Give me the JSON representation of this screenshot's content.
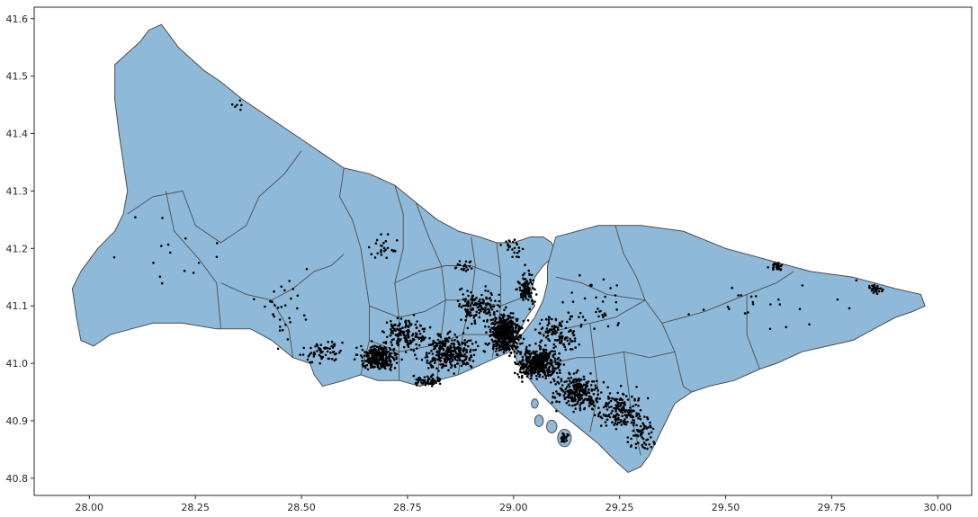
{
  "chart_data": {
    "type": "scatter",
    "title": "",
    "xlabel": "",
    "ylabel": "",
    "xlim": [
      27.87,
      30.08
    ],
    "ylim": [
      40.77,
      41.62
    ],
    "x_ticks": [
      "28.00",
      "28.25",
      "28.50",
      "28.75",
      "29.00",
      "29.25",
      "29.50",
      "29.75",
      "30.00"
    ],
    "y_ticks": [
      "40.8",
      "40.9",
      "41.0",
      "41.1",
      "41.2",
      "41.3",
      "41.4",
      "41.5",
      "41.6"
    ],
    "grid": false,
    "legend": "none",
    "colors": {
      "land": "#8fb9d9",
      "border": "#4d4d4d",
      "points": "#000000",
      "axes": "#262626"
    },
    "outline": [
      [
        28.12,
        41.56
      ],
      [
        28.14,
        41.58
      ],
      [
        28.17,
        41.59
      ],
      [
        28.19,
        41.57
      ],
      [
        28.21,
        41.55
      ],
      [
        28.24,
        41.53
      ],
      [
        28.27,
        41.51
      ],
      [
        28.31,
        41.49
      ],
      [
        28.36,
        41.46
      ],
      [
        28.42,
        41.43
      ],
      [
        28.48,
        41.4
      ],
      [
        28.54,
        41.37
      ],
      [
        28.6,
        41.34
      ],
      [
        28.66,
        41.33
      ],
      [
        28.72,
        41.31
      ],
      [
        28.77,
        41.28
      ],
      [
        28.82,
        41.25
      ],
      [
        28.87,
        41.23
      ],
      [
        28.92,
        41.22
      ],
      [
        28.96,
        41.21
      ],
      [
        29.0,
        41.21
      ],
      [
        29.04,
        41.22
      ],
      [
        29.07,
        41.22
      ],
      [
        29.09,
        41.21
      ],
      [
        29.1,
        41.19
      ],
      [
        29.07,
        41.17
      ],
      [
        29.05,
        41.15
      ],
      [
        29.04,
        41.12
      ],
      [
        29.05,
        41.1
      ],
      [
        29.03,
        41.08
      ],
      [
        29.01,
        41.05
      ],
      [
        28.99,
        41.02
      ],
      [
        28.96,
        41.01
      ],
      [
        28.93,
        41.0
      ],
      [
        28.9,
        40.99
      ],
      [
        28.87,
        40.98
      ],
      [
        28.82,
        40.97
      ],
      [
        28.78,
        40.96
      ],
      [
        28.73,
        40.97
      ],
      [
        28.68,
        40.97
      ],
      [
        28.64,
        40.98
      ],
      [
        28.6,
        40.97
      ],
      [
        28.55,
        40.96
      ],
      [
        28.53,
        40.98
      ],
      [
        28.52,
        41.0
      ],
      [
        28.48,
        41.01
      ],
      [
        28.43,
        41.04
      ],
      [
        28.38,
        41.06
      ],
      [
        28.3,
        41.06
      ],
      [
        28.22,
        41.07
      ],
      [
        28.15,
        41.07
      ],
      [
        28.1,
        41.06
      ],
      [
        28.05,
        41.05
      ],
      [
        28.01,
        41.03
      ],
      [
        27.98,
        41.04
      ],
      [
        27.97,
        41.08
      ],
      [
        27.96,
        41.13
      ],
      [
        27.98,
        41.16
      ],
      [
        28.02,
        41.2
      ],
      [
        28.06,
        41.23
      ],
      [
        28.08,
        41.26
      ],
      [
        28.09,
        41.3
      ],
      [
        28.08,
        41.35
      ],
      [
        28.07,
        41.4
      ],
      [
        28.06,
        41.46
      ],
      [
        28.06,
        41.52
      ],
      [
        28.09,
        41.54
      ]
    ],
    "outline_asia": [
      [
        29.1,
        41.22
      ],
      [
        29.15,
        41.23
      ],
      [
        29.2,
        41.24
      ],
      [
        29.25,
        41.24
      ],
      [
        29.3,
        41.24
      ],
      [
        29.4,
        41.23
      ],
      [
        29.5,
        41.2
      ],
      [
        29.6,
        41.18
      ],
      [
        29.7,
        41.16
      ],
      [
        29.8,
        41.15
      ],
      [
        29.9,
        41.13
      ],
      [
        29.96,
        41.12
      ],
      [
        29.97,
        41.1
      ],
      [
        29.94,
        41.09
      ],
      [
        29.9,
        41.08
      ],
      [
        29.85,
        41.06
      ],
      [
        29.8,
        41.04
      ],
      [
        29.74,
        41.03
      ],
      [
        29.68,
        41.02
      ],
      [
        29.62,
        41.0
      ],
      [
        29.58,
        40.99
      ],
      [
        29.52,
        40.97
      ],
      [
        29.46,
        40.96
      ],
      [
        29.42,
        40.95
      ],
      [
        29.38,
        40.93
      ],
      [
        29.36,
        40.9
      ],
      [
        29.34,
        40.87
      ],
      [
        29.32,
        40.84
      ],
      [
        29.3,
        40.82
      ],
      [
        29.27,
        40.81
      ],
      [
        29.24,
        40.83
      ],
      [
        29.2,
        40.86
      ],
      [
        29.15,
        40.89
      ],
      [
        29.1,
        40.92
      ],
      [
        29.06,
        40.95
      ],
      [
        29.03,
        40.98
      ],
      [
        29.01,
        41.0
      ],
      [
        29.0,
        41.02
      ],
      [
        29.02,
        41.05
      ],
      [
        29.05,
        41.08
      ],
      [
        29.07,
        41.11
      ],
      [
        29.08,
        41.14
      ],
      [
        29.08,
        41.17
      ]
    ],
    "islands": [
      [
        29.12,
        40.87,
        0.016,
        0.015
      ],
      [
        29.09,
        40.89,
        0.012,
        0.011
      ],
      [
        29.06,
        40.9,
        0.01,
        0.01
      ],
      [
        29.05,
        40.93,
        0.008,
        0.008
      ]
    ],
    "districts": [
      [
        [
          28.18,
          41.3
        ],
        [
          28.2,
          41.23
        ],
        [
          28.26,
          41.18
        ],
        [
          28.3,
          41.14
        ],
        [
          28.31,
          41.06
        ]
      ],
      [
        [
          28.09,
          41.26
        ],
        [
          28.15,
          41.29
        ],
        [
          28.22,
          41.3
        ],
        [
          28.25,
          41.24
        ],
        [
          28.31,
          41.21
        ],
        [
          28.37,
          41.24
        ],
        [
          28.4,
          41.29
        ],
        [
          28.46,
          41.33
        ],
        [
          28.5,
          41.37
        ]
      ],
      [
        [
          28.31,
          41.14
        ],
        [
          28.37,
          41.12
        ],
        [
          28.43,
          41.11
        ],
        [
          28.48,
          41.13
        ],
        [
          28.53,
          41.16
        ],
        [
          28.57,
          41.17
        ],
        [
          28.6,
          41.19
        ]
      ],
      [
        [
          28.43,
          41.11
        ],
        [
          28.47,
          41.06
        ],
        [
          28.48,
          41.01
        ]
      ],
      [
        [
          28.6,
          41.34
        ],
        [
          28.59,
          41.29
        ],
        [
          28.62,
          41.25
        ],
        [
          28.64,
          41.2
        ],
        [
          28.65,
          41.15
        ],
        [
          28.66,
          41.1
        ],
        [
          28.66,
          41.04
        ],
        [
          28.64,
          40.98
        ]
      ],
      [
        [
          28.72,
          41.31
        ],
        [
          28.74,
          41.26
        ],
        [
          28.74,
          41.2
        ],
        [
          28.72,
          41.14
        ],
        [
          28.73,
          41.08
        ],
        [
          28.73,
          41.02
        ],
        [
          28.73,
          40.97
        ]
      ],
      [
        [
          28.77,
          41.28
        ],
        [
          28.8,
          41.22
        ],
        [
          28.83,
          41.17
        ],
        [
          28.84,
          41.11
        ],
        [
          28.83,
          41.05
        ],
        [
          28.82,
          40.97
        ]
      ],
      [
        [
          28.9,
          41.22
        ],
        [
          28.91,
          41.17
        ],
        [
          28.9,
          41.11
        ],
        [
          28.88,
          41.05
        ],
        [
          28.87,
          40.98
        ]
      ],
      [
        [
          28.96,
          41.21
        ],
        [
          28.97,
          41.15
        ],
        [
          28.97,
          41.1
        ],
        [
          28.96,
          41.05
        ],
        [
          28.95,
          41.01
        ]
      ],
      [
        [
          28.66,
          41.1
        ],
        [
          28.73,
          41.08
        ],
        [
          28.79,
          41.09
        ],
        [
          28.84,
          41.11
        ],
        [
          28.9,
          41.11
        ],
        [
          28.97,
          41.1
        ],
        [
          29.04,
          41.12
        ]
      ],
      [
        [
          28.72,
          41.14
        ],
        [
          28.78,
          41.16
        ],
        [
          28.84,
          41.17
        ],
        [
          28.9,
          41.17
        ],
        [
          28.97,
          41.15
        ]
      ],
      [
        [
          28.66,
          41.04
        ],
        [
          28.73,
          41.02
        ],
        [
          28.8,
          41.03
        ],
        [
          28.88,
          41.05
        ],
        [
          28.96,
          41.05
        ]
      ],
      [
        [
          29.24,
          41.24
        ],
        [
          29.26,
          41.19
        ],
        [
          29.29,
          41.15
        ],
        [
          29.31,
          41.11
        ],
        [
          29.35,
          41.07
        ],
        [
          29.38,
          41.02
        ],
        [
          29.4,
          40.96
        ],
        [
          29.42,
          40.95
        ]
      ],
      [
        [
          29.1,
          41.15
        ],
        [
          29.16,
          41.14
        ],
        [
          29.22,
          41.12
        ],
        [
          29.31,
          41.11
        ]
      ],
      [
        [
          29.06,
          41.05
        ],
        [
          29.12,
          41.06
        ],
        [
          29.18,
          41.07
        ],
        [
          29.24,
          41.08
        ],
        [
          29.31,
          41.11
        ]
      ],
      [
        [
          29.18,
          41.07
        ],
        [
          29.19,
          41.01
        ],
        [
          29.2,
          40.95
        ],
        [
          29.18,
          40.88
        ]
      ],
      [
        [
          29.03,
          40.98
        ],
        [
          29.09,
          41.0
        ],
        [
          29.15,
          41.01
        ],
        [
          29.19,
          41.01
        ],
        [
          29.26,
          41.02
        ],
        [
          29.32,
          41.01
        ],
        [
          29.38,
          41.02
        ]
      ],
      [
        [
          29.26,
          41.02
        ],
        [
          29.27,
          40.96
        ],
        [
          29.28,
          40.9
        ],
        [
          29.3,
          40.84
        ]
      ],
      [
        [
          29.35,
          41.07
        ],
        [
          29.45,
          41.09
        ],
        [
          29.55,
          41.12
        ],
        [
          29.62,
          41.14
        ],
        [
          29.66,
          41.16
        ]
      ],
      [
        [
          29.55,
          41.12
        ],
        [
          29.55,
          41.05
        ],
        [
          29.58,
          40.99
        ]
      ]
    ]
  }
}
